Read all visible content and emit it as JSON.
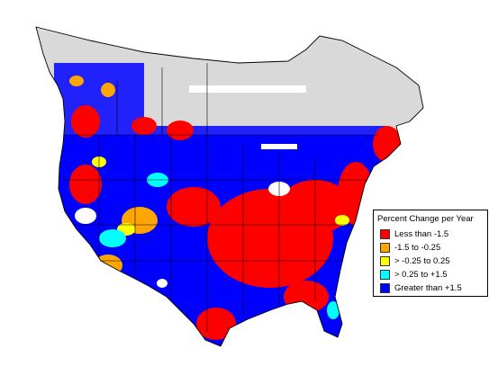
{
  "colors": {
    "background": "#ffffff",
    "land_nodata": "#d9d9d9",
    "outline": "#000000"
  },
  "legend": {
    "title": "Percent Change per Year",
    "items": [
      {
        "label": "Less than -1.5",
        "color": "#ff0000"
      },
      {
        "label": "-1.5 to -0.25",
        "color": "#ffa500"
      },
      {
        "label": "> -0.25 to 0.25",
        "color": "#ffff00"
      },
      {
        "label": "> 0.25 to +1.5",
        "color": "#00ffff"
      },
      {
        "label": "Greater than +1.5",
        "color": "#0000ff"
      }
    ]
  }
}
